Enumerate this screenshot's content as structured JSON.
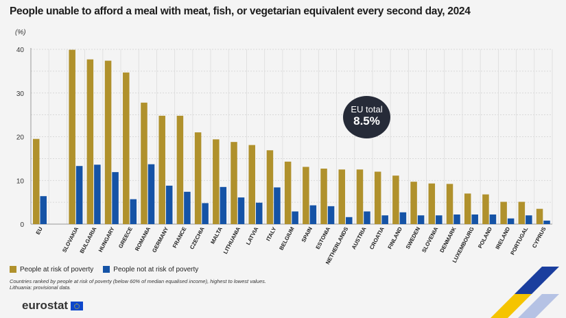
{
  "title": "People unable to afford a meal with meat, fish, or vegetarian equivalent every second day, 2024",
  "unit": "(%)",
  "badge": {
    "line1": "EU total",
    "line2": "8.5%"
  },
  "legend": [
    {
      "label": "People at risk of poverty",
      "color": "#b0912c"
    },
    {
      "label": "People not at risk of poverty",
      "color": "#1553a6"
    }
  ],
  "notes": [
    "Countries ranked by people at risk of poverty (below 60% of median equalised income), highest to lowest values.",
    "Lithuania: provisional data."
  ],
  "logo": "eurostat",
  "chart_data": {
    "type": "bar",
    "title": "People unable to afford a meal with meat, fish, or vegetarian equivalent every second day, 2024",
    "ylabel": "(%)",
    "ylim": [
      0,
      40
    ],
    "yticks": [
      0,
      10,
      20,
      30,
      40
    ],
    "grid": true,
    "legend_position": "bottom-left",
    "categories": [
      "EU",
      "SLOVAKIA",
      "BULGARIA",
      "HUNGARY",
      "GREECE",
      "ROMANIA",
      "GERMANY",
      "FRANCE",
      "CZECHIA",
      "MALTA",
      "LITHUANIA",
      "LATVIA",
      "ITALY",
      "BELGIUM",
      "SPAIN",
      "ESTONIA",
      "NETHERLANDS",
      "AUSTRIA",
      "CROATIA",
      "FINLAND",
      "SWEDEN",
      "SLOVENIA",
      "DENMARK",
      "LUXEMBOURG",
      "POLAND",
      "IRELAND",
      "PORTUGAL",
      "CYPRUS"
    ],
    "series": [
      {
        "name": "People at risk of poverty",
        "color": "#b0912c",
        "values": [
          19.5,
          39.9,
          37.7,
          37.4,
          34.7,
          27.8,
          24.8,
          24.8,
          21.0,
          19.4,
          18.8,
          18.1,
          16.9,
          14.3,
          13.1,
          12.7,
          12.5,
          12.5,
          12.0,
          11.1,
          9.7,
          9.3,
          9.2,
          7.0,
          6.8,
          5.1,
          5.1,
          3.5
        ]
      },
      {
        "name": "People not at risk of poverty",
        "color": "#1553a6",
        "values": [
          6.4,
          13.3,
          13.6,
          11.9,
          5.7,
          13.7,
          8.8,
          7.4,
          4.8,
          8.5,
          6.1,
          4.9,
          8.4,
          2.9,
          4.3,
          4.1,
          1.6,
          2.9,
          2.0,
          2.7,
          2.0,
          2.0,
          2.2,
          2.2,
          2.2,
          1.3,
          2.0,
          0.8
        ]
      }
    ]
  }
}
